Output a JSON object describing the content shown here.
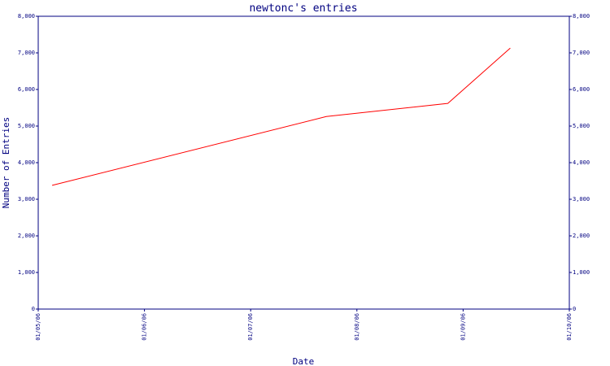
{
  "chart_data": {
    "type": "line",
    "title": "newtonc's entries",
    "xlabel": "Date",
    "ylabel": "Number of Entries",
    "x_ticks": [
      "01/05/06",
      "01/06/06",
      "01/07/06",
      "01/08/06",
      "01/09/06",
      "01/10/06"
    ],
    "ylim": [
      0,
      8000
    ],
    "y_ticks": [
      0,
      1000,
      2000,
      3000,
      4000,
      5000,
      6000,
      7000,
      8000
    ],
    "y_tick_labels": [
      "0",
      "1,000",
      "2,000",
      "3,000",
      "4,000",
      "5,000",
      "6,000",
      "7,000",
      "8,000"
    ],
    "xlim": [
      "2006-05-01",
      "2006-10-01"
    ],
    "grid": false,
    "series": [
      {
        "color": "#ff0000",
        "x": [
          "2006-05-05",
          "2006-07-23",
          "2006-08-27",
          "2006-09-14"
        ],
        "y": [
          3380,
          5260,
          5620,
          7130
        ]
      }
    ]
  }
}
